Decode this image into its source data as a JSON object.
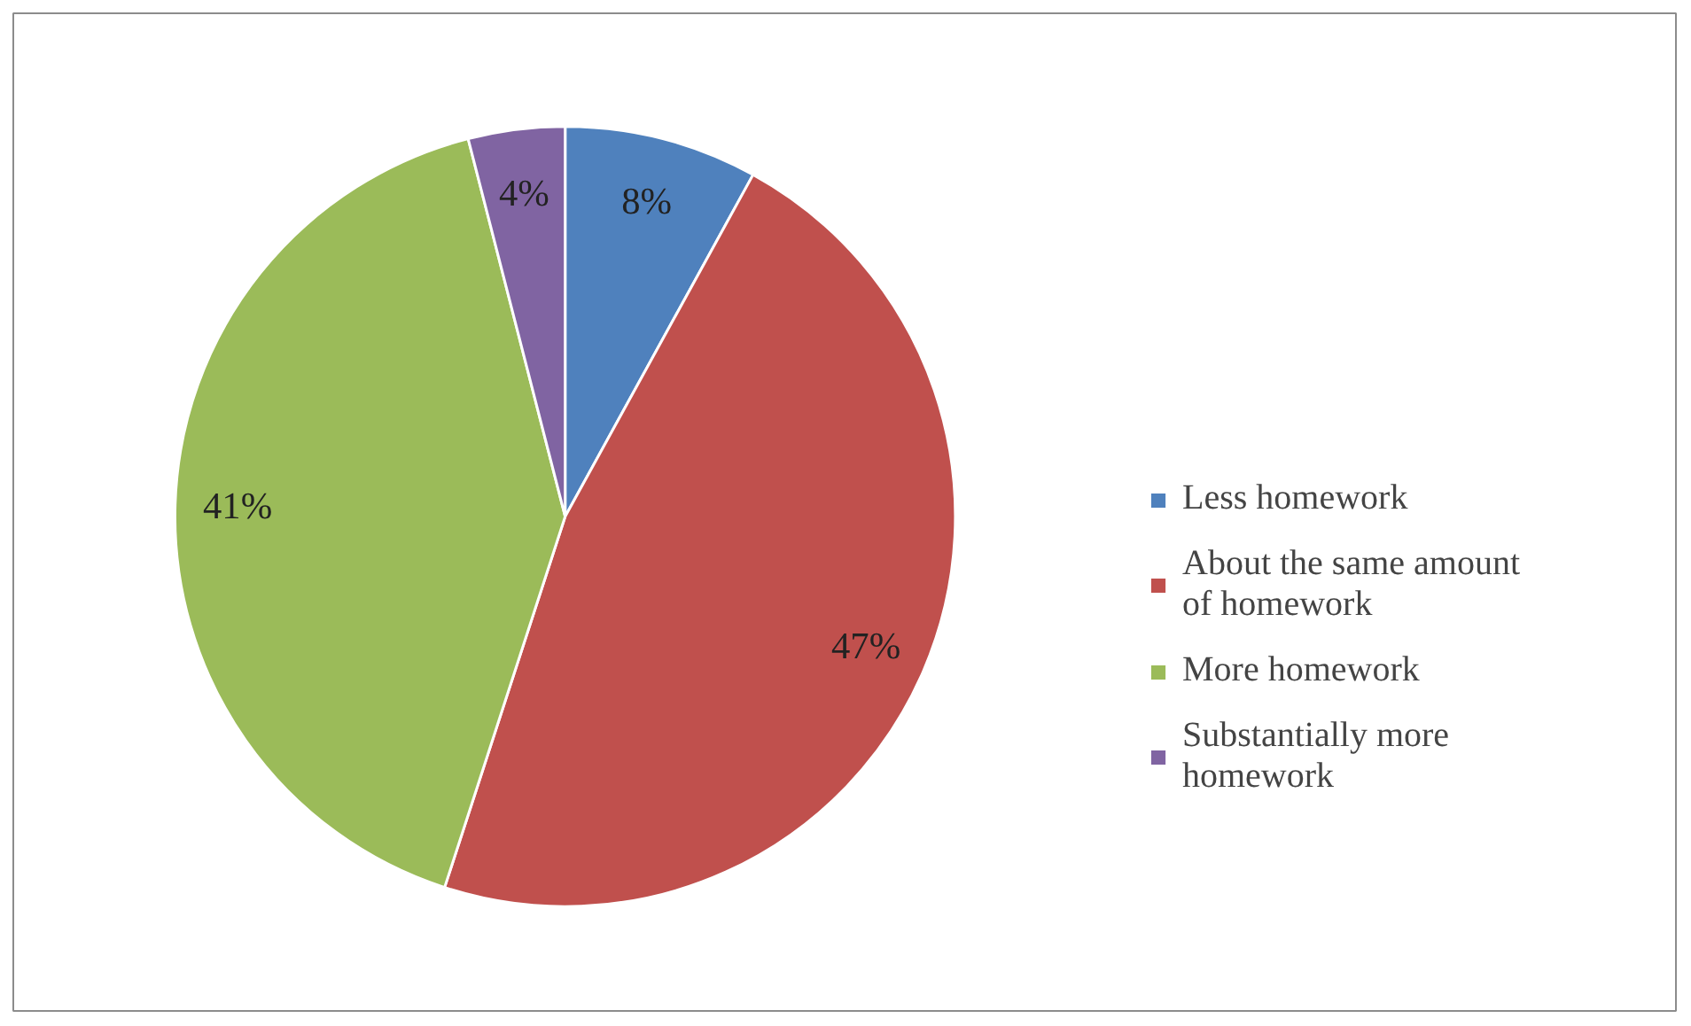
{
  "chart_data": {
    "type": "pie",
    "categories": [
      "Less homework",
      "About the same amount of homework",
      "More homework",
      "Substantially more homework"
    ],
    "values": [
      8,
      47,
      41,
      4
    ],
    "colors": [
      "#4f81bd",
      "#c0504d",
      "#9bbb59",
      "#8064a2"
    ],
    "value_labels": [
      "8%",
      "47%",
      "41%",
      "4%"
    ],
    "legend": "right"
  }
}
